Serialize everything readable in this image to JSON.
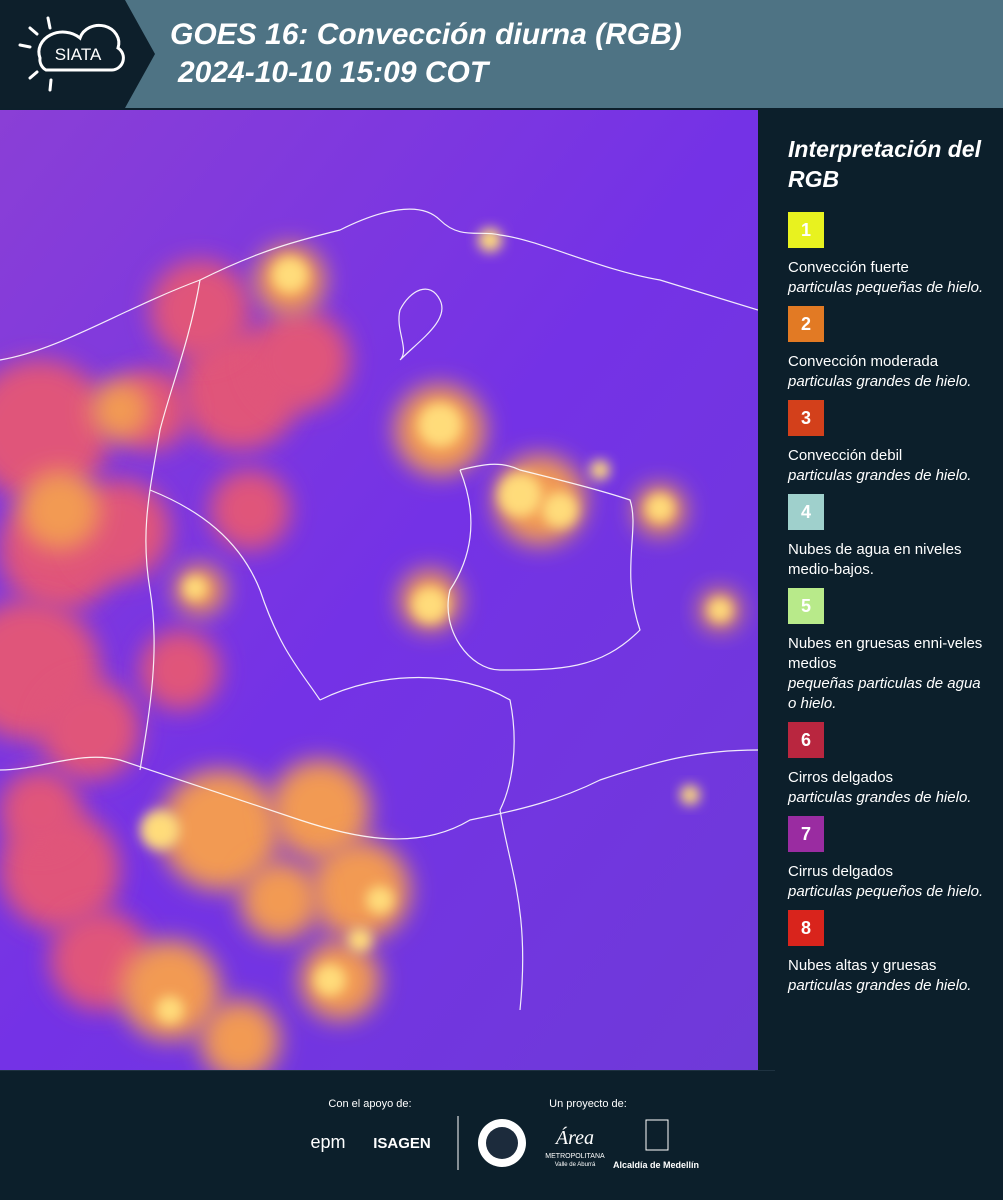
{
  "header": {
    "logo": "SIATA",
    "title": "GOES 16: Convección diurna (RGB)",
    "subtitle": "2024-10-10 15:09 COT"
  },
  "legend": {
    "title": "Interpretación del RGB",
    "items": [
      {
        "number": "1",
        "color": "#e8f21f",
        "title": "Convección fuerte",
        "subtitle": "particulas pequeñas de hielo."
      },
      {
        "number": "2",
        "color": "#e27a24",
        "title": "Convección moderada",
        "subtitle": "particulas grandes de hielo."
      },
      {
        "number": "3",
        "color": "#d3401b",
        "title": "Convección debil",
        "subtitle": "particulas grandes de hielo."
      },
      {
        "number": "4",
        "color": "#9fd0cc",
        "title": "Nubes de agua en niveles medio-bajos.",
        "subtitle": null
      },
      {
        "number": "5",
        "color": "#b8ea8a",
        "title": "Nubes en gruesas enni-veles medios",
        "subtitle": "pequeñas particulas de agua o hielo."
      },
      {
        "number": "6",
        "color": "#b9263f",
        "title": "Cirros delgados",
        "subtitle": "particulas grandes de hielo."
      },
      {
        "number": "7",
        "color": "#9a2ca1",
        "title": "Cirrus delgados",
        "subtitle": "particulas pequeños de hielo."
      },
      {
        "number": "8",
        "color": "#d9241c",
        "title": "Nubes altas y gruesas",
        "subtitle": "particulas grandes de hielo."
      }
    ]
  },
  "footer": {
    "support_label": "Con el apoyo de:",
    "project_label": "Un proyecto de:",
    "sponsors": [
      "epm",
      "ISAGEN"
    ],
    "partners": {
      "area": "Área",
      "area_sub": "METROPOLITANA",
      "area_sub2": "Valle de Aburrá",
      "alcaldia": "Alcaldía de Medellín"
    }
  }
}
